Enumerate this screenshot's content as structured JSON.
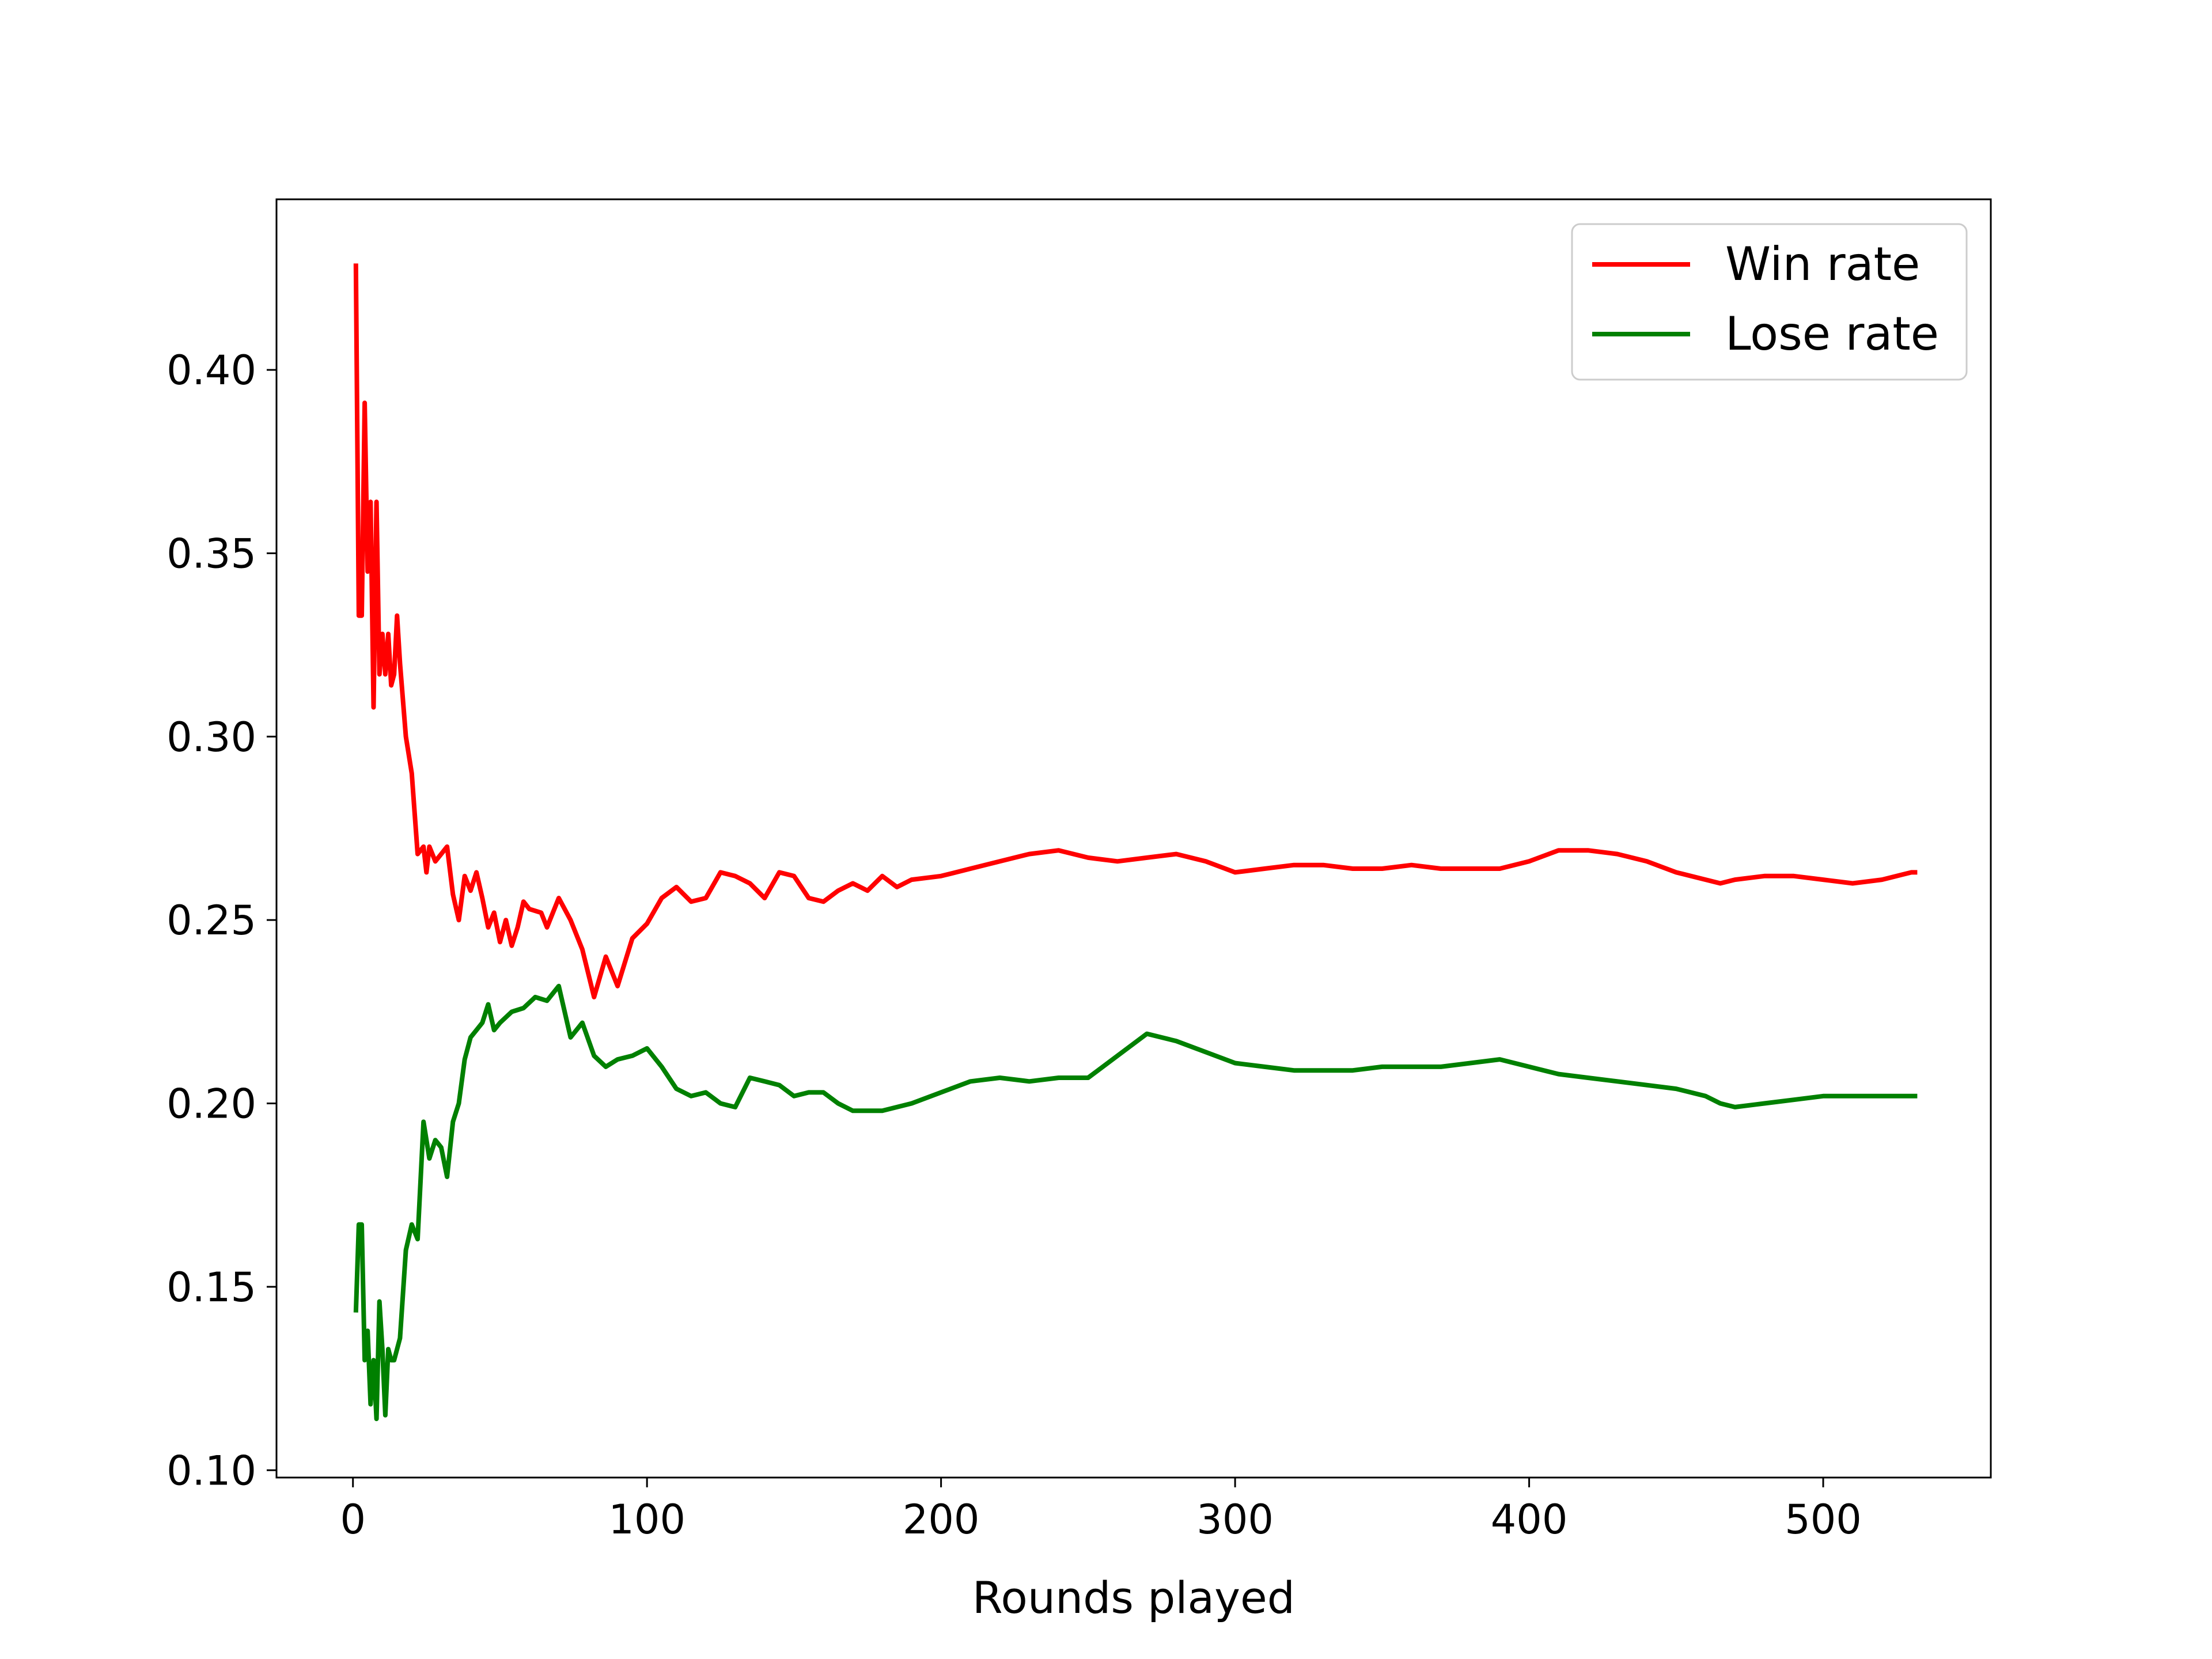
{
  "chart_data": {
    "type": "line",
    "title": "",
    "xlabel": "Rounds played",
    "ylabel": "",
    "xlim": [
      -26,
      557
    ],
    "ylim": [
      0.098,
      0.4465
    ],
    "xticks": [
      0,
      100,
      200,
      300,
      400,
      500
    ],
    "xtick_labels": [
      "0",
      "100",
      "200",
      "300",
      "400",
      "500"
    ],
    "yticks": [
      0.1,
      0.15,
      0.2,
      0.25,
      0.3,
      0.35,
      0.4
    ],
    "ytick_labels": [
      "0.10",
      "0.15",
      "0.20",
      "0.25",
      "0.30",
      "0.35",
      "0.40"
    ],
    "grid": false,
    "legend": {
      "position": "top-right"
    },
    "series": [
      {
        "name": "Win rate",
        "color": "#ff0000",
        "points": [
          [
            1,
            0.429
          ],
          [
            2,
            0.333
          ],
          [
            3,
            0.333
          ],
          [
            4,
            0.391
          ],
          [
            5,
            0.345
          ],
          [
            6,
            0.364
          ],
          [
            7,
            0.308
          ],
          [
            8,
            0.364
          ],
          [
            9,
            0.317
          ],
          [
            10,
            0.328
          ],
          [
            11,
            0.317
          ],
          [
            12,
            0.328
          ],
          [
            13,
            0.314
          ],
          [
            14,
            0.317
          ],
          [
            15,
            0.333
          ],
          [
            16,
            0.32
          ],
          [
            18,
            0.3
          ],
          [
            20,
            0.29
          ],
          [
            22,
            0.268
          ],
          [
            24,
            0.27
          ],
          [
            25,
            0.263
          ],
          [
            26,
            0.27
          ],
          [
            28,
            0.266
          ],
          [
            30,
            0.268
          ],
          [
            32,
            0.27
          ],
          [
            34,
            0.257
          ],
          [
            36,
            0.25
          ],
          [
            38,
            0.262
          ],
          [
            40,
            0.258
          ],
          [
            42,
            0.263
          ],
          [
            44,
            0.256
          ],
          [
            46,
            0.248
          ],
          [
            48,
            0.252
          ],
          [
            50,
            0.244
          ],
          [
            52,
            0.25
          ],
          [
            54,
            0.243
          ],
          [
            56,
            0.248
          ],
          [
            58,
            0.255
          ],
          [
            60,
            0.253
          ],
          [
            64,
            0.252
          ],
          [
            66,
            0.248
          ],
          [
            70,
            0.256
          ],
          [
            74,
            0.25
          ],
          [
            78,
            0.242
          ],
          [
            82,
            0.229
          ],
          [
            86,
            0.24
          ],
          [
            90,
            0.232
          ],
          [
            95,
            0.245
          ],
          [
            100,
            0.249
          ],
          [
            105,
            0.256
          ],
          [
            110,
            0.259
          ],
          [
            115,
            0.255
          ],
          [
            120,
            0.256
          ],
          [
            125,
            0.263
          ],
          [
            130,
            0.262
          ],
          [
            135,
            0.26
          ],
          [
            140,
            0.256
          ],
          [
            145,
            0.263
          ],
          [
            150,
            0.262
          ],
          [
            155,
            0.256
          ],
          [
            160,
            0.255
          ],
          [
            165,
            0.258
          ],
          [
            170,
            0.26
          ],
          [
            175,
            0.258
          ],
          [
            180,
            0.262
          ],
          [
            185,
            0.259
          ],
          [
            190,
            0.261
          ],
          [
            200,
            0.262
          ],
          [
            210,
            0.264
          ],
          [
            220,
            0.266
          ],
          [
            230,
            0.268
          ],
          [
            240,
            0.269
          ],
          [
            250,
            0.267
          ],
          [
            260,
            0.266
          ],
          [
            270,
            0.267
          ],
          [
            280,
            0.268
          ],
          [
            290,
            0.266
          ],
          [
            300,
            0.263
          ],
          [
            310,
            0.264
          ],
          [
            320,
            0.265
          ],
          [
            330,
            0.265
          ],
          [
            340,
            0.264
          ],
          [
            350,
            0.264
          ],
          [
            360,
            0.265
          ],
          [
            370,
            0.264
          ],
          [
            380,
            0.264
          ],
          [
            390,
            0.264
          ],
          [
            400,
            0.266
          ],
          [
            410,
            0.269
          ],
          [
            420,
            0.269
          ],
          [
            430,
            0.268
          ],
          [
            440,
            0.266
          ],
          [
            450,
            0.263
          ],
          [
            460,
            0.261
          ],
          [
            465,
            0.26
          ],
          [
            470,
            0.261
          ],
          [
            480,
            0.262
          ],
          [
            490,
            0.262
          ],
          [
            500,
            0.261
          ],
          [
            510,
            0.26
          ],
          [
            520,
            0.261
          ],
          [
            530,
            0.263
          ],
          [
            532,
            0.263
          ]
        ]
      },
      {
        "name": "Lose rate",
        "color": "#008000",
        "points": [
          [
            1,
            0.143
          ],
          [
            2,
            0.167
          ],
          [
            3,
            0.167
          ],
          [
            4,
            0.13
          ],
          [
            5,
            0.138
          ],
          [
            6,
            0.118
          ],
          [
            7,
            0.13
          ],
          [
            8,
            0.114
          ],
          [
            9,
            0.146
          ],
          [
            10,
            0.133
          ],
          [
            11,
            0.115
          ],
          [
            12,
            0.133
          ],
          [
            13,
            0.13
          ],
          [
            14,
            0.13
          ],
          [
            15,
            0.133
          ],
          [
            16,
            0.136
          ],
          [
            18,
            0.16
          ],
          [
            20,
            0.167
          ],
          [
            22,
            0.163
          ],
          [
            24,
            0.195
          ],
          [
            26,
            0.185
          ],
          [
            28,
            0.19
          ],
          [
            30,
            0.188
          ],
          [
            32,
            0.18
          ],
          [
            34,
            0.195
          ],
          [
            36,
            0.2
          ],
          [
            38,
            0.212
          ],
          [
            40,
            0.218
          ],
          [
            42,
            0.22
          ],
          [
            44,
            0.222
          ],
          [
            46,
            0.227
          ],
          [
            48,
            0.22
          ],
          [
            50,
            0.222
          ],
          [
            54,
            0.225
          ],
          [
            58,
            0.226
          ],
          [
            62,
            0.229
          ],
          [
            66,
            0.228
          ],
          [
            70,
            0.232
          ],
          [
            74,
            0.218
          ],
          [
            78,
            0.222
          ],
          [
            82,
            0.213
          ],
          [
            86,
            0.21
          ],
          [
            90,
            0.212
          ],
          [
            95,
            0.213
          ],
          [
            100,
            0.215
          ],
          [
            105,
            0.21
          ],
          [
            110,
            0.204
          ],
          [
            115,
            0.202
          ],
          [
            120,
            0.203
          ],
          [
            125,
            0.2
          ],
          [
            130,
            0.199
          ],
          [
            135,
            0.207
          ],
          [
            140,
            0.206
          ],
          [
            145,
            0.205
          ],
          [
            150,
            0.202
          ],
          [
            155,
            0.203
          ],
          [
            160,
            0.203
          ],
          [
            165,
            0.2
          ],
          [
            170,
            0.198
          ],
          [
            175,
            0.198
          ],
          [
            180,
            0.198
          ],
          [
            185,
            0.199
          ],
          [
            190,
            0.2
          ],
          [
            200,
            0.203
          ],
          [
            210,
            0.206
          ],
          [
            220,
            0.207
          ],
          [
            230,
            0.206
          ],
          [
            240,
            0.207
          ],
          [
            250,
            0.207
          ],
          [
            260,
            0.213
          ],
          [
            270,
            0.219
          ],
          [
            280,
            0.217
          ],
          [
            290,
            0.214
          ],
          [
            300,
            0.211
          ],
          [
            310,
            0.21
          ],
          [
            320,
            0.209
          ],
          [
            330,
            0.209
          ],
          [
            340,
            0.209
          ],
          [
            350,
            0.21
          ],
          [
            360,
            0.21
          ],
          [
            370,
            0.21
          ],
          [
            380,
            0.211
          ],
          [
            390,
            0.212
          ],
          [
            400,
            0.21
          ],
          [
            410,
            0.208
          ],
          [
            420,
            0.207
          ],
          [
            430,
            0.206
          ],
          [
            440,
            0.205
          ],
          [
            450,
            0.204
          ],
          [
            460,
            0.202
          ],
          [
            465,
            0.2
          ],
          [
            470,
            0.199
          ],
          [
            480,
            0.2
          ],
          [
            490,
            0.201
          ],
          [
            500,
            0.202
          ],
          [
            510,
            0.202
          ],
          [
            520,
            0.202
          ],
          [
            530,
            0.202
          ],
          [
            532,
            0.202
          ]
        ]
      }
    ]
  }
}
